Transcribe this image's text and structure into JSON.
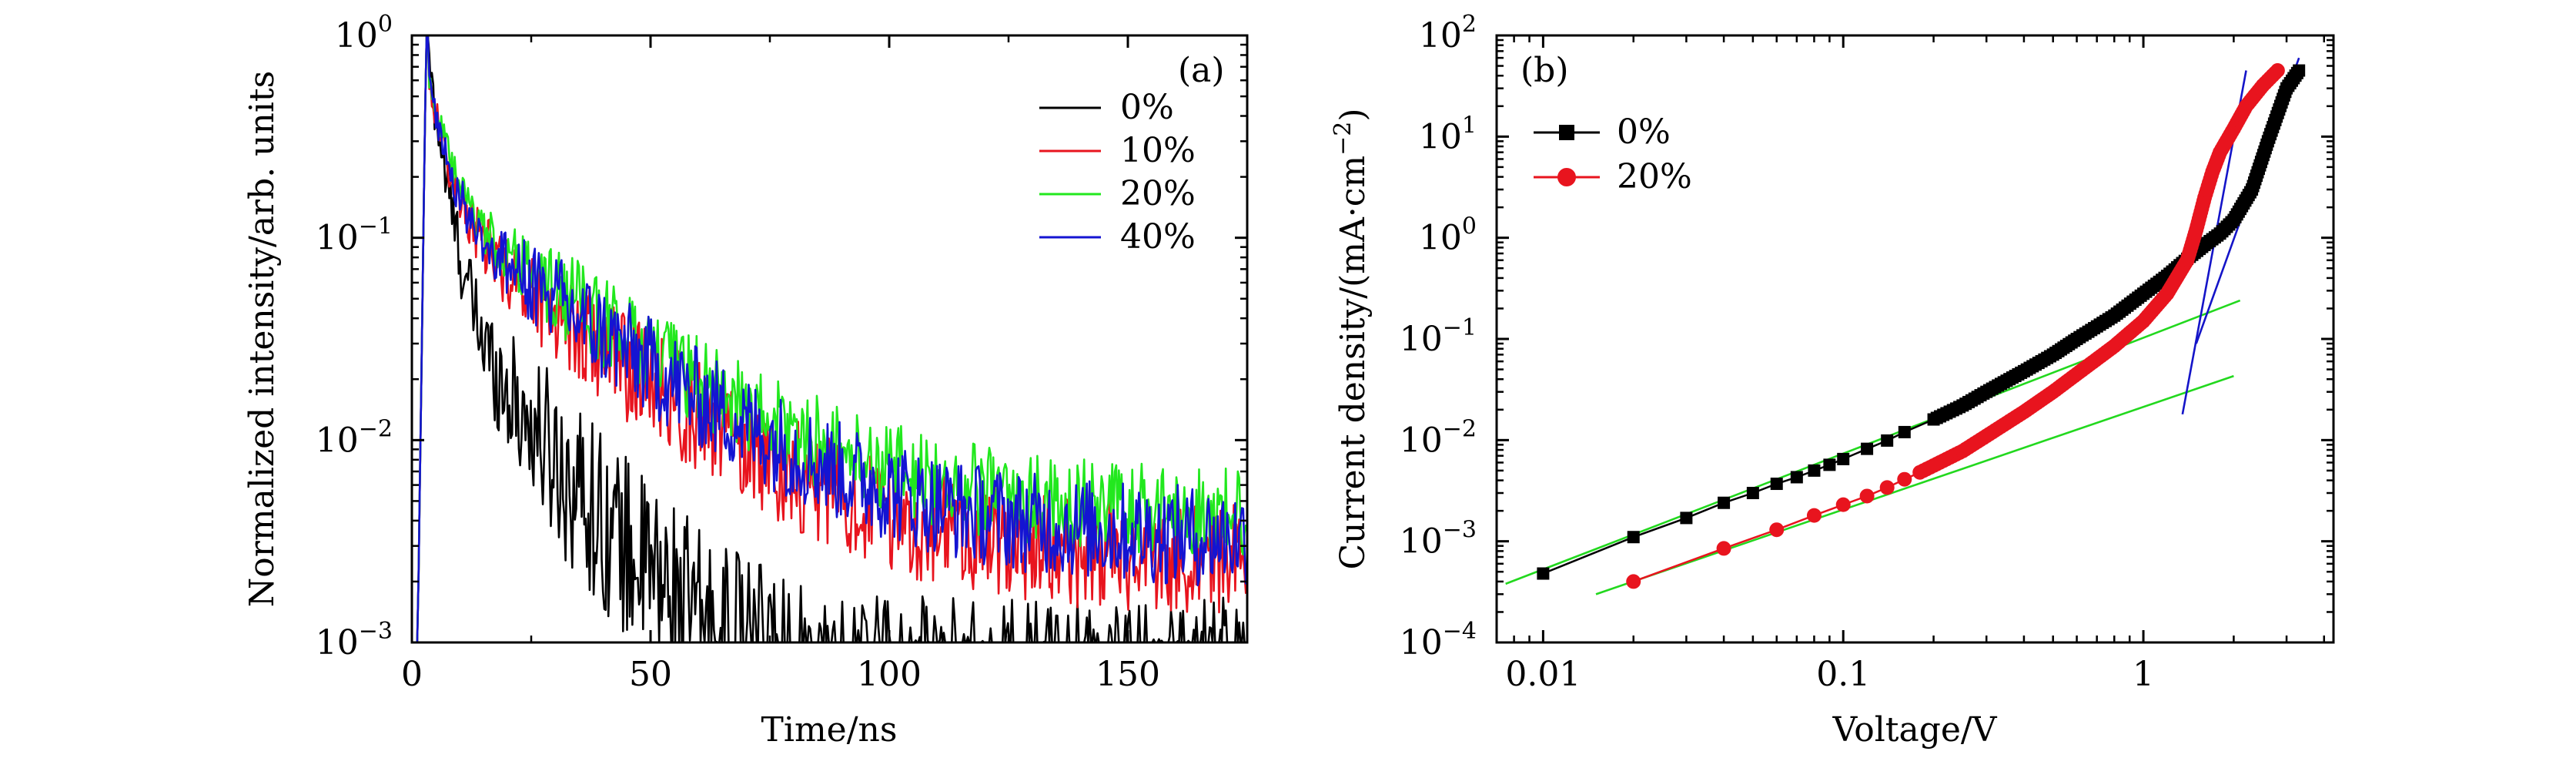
{
  "chart_data": [
    {
      "panel": "(a)",
      "type": "line",
      "xlabel": "Time/ns",
      "ylabel": "Normalized intensity/arb. units",
      "xlim": [
        0,
        175
      ],
      "ylim": [
        0.001,
        1
      ],
      "yscale": "log",
      "xticks": [
        0,
        50,
        100,
        150
      ],
      "xtick_labels": [
        "0",
        "50",
        "100",
        "150"
      ],
      "yticks": [
        0.001,
        0.01,
        0.1,
        1
      ],
      "ytick_labels": [
        {
          "base": "10",
          "exp": "−3"
        },
        {
          "base": "10",
          "exp": "−2"
        },
        {
          "base": "10",
          "exp": "−1"
        },
        {
          "base": "10",
          "exp": "0"
        }
      ],
      "legend_position": "top-right",
      "peak_time": 3,
      "series": [
        {
          "name": "0%",
          "color": "#000000",
          "fast": {
            "a": 0.8,
            "tau": 2.5
          },
          "slow": {
            "a": 0.06,
            "tau": 13
          },
          "floor": 0.0006,
          "noise": 0.9
        },
        {
          "name": "10%",
          "color": "#e8141e",
          "fast": {
            "a": 0.55,
            "tau": 3
          },
          "slow": {
            "a": 0.14,
            "tau": 22
          },
          "floor": 0.0025,
          "noise": 0.55
        },
        {
          "name": "20%",
          "color": "#22e81e",
          "fast": {
            "a": 0.55,
            "tau": 3.2
          },
          "slow": {
            "a": 0.15,
            "tau": 25
          },
          "floor": 0.0042,
          "noise": 0.45
        },
        {
          "name": "40%",
          "color": "#1414d2",
          "fast": {
            "a": 0.55,
            "tau": 3
          },
          "slow": {
            "a": 0.14,
            "tau": 24
          },
          "floor": 0.0032,
          "noise": 0.5
        }
      ]
    },
    {
      "panel": "(b)",
      "type": "scatter",
      "xlabel": "Voltage/V",
      "ylabel": "Current density/(mA·cm",
      "ylabel_exp": "−2",
      "ylabel_tail": ")",
      "xlim": [
        0.007,
        4.3
      ],
      "ylim": [
        0.0001,
        100
      ],
      "xscale": "log",
      "yscale": "log",
      "xticks": [
        0.01,
        0.1,
        1
      ],
      "xtick_labels": [
        "0.01",
        "0.1",
        "1"
      ],
      "yticks": [
        0.0001,
        0.001,
        0.01,
        0.1,
        1,
        10,
        100
      ],
      "ytick_labels": [
        {
          "base": "10",
          "exp": "−4"
        },
        {
          "base": "10",
          "exp": "−3"
        },
        {
          "base": "10",
          "exp": "−2"
        },
        {
          "base": "10",
          "exp": "−1"
        },
        {
          "base": "10",
          "exp": "0"
        },
        {
          "base": "10",
          "exp": "1"
        },
        {
          "base": "10",
          "exp": "2"
        }
      ],
      "legend_position": "top-left",
      "series": [
        {
          "name": "0%",
          "color": "#000000",
          "marker": "square",
          "x": [
            0.01,
            0.02,
            0.03,
            0.04,
            0.05,
            0.06,
            0.07,
            0.08,
            0.09,
            0.1,
            0.12,
            0.14,
            0.16,
            0.2,
            0.25,
            0.3,
            0.4,
            0.5,
            0.6,
            0.8,
            1.0,
            1.2,
            1.4,
            1.6,
            1.8,
            2.0,
            2.3,
            2.6,
            3.0,
            3.3
          ],
          "y": [
            0.00048,
            0.0011,
            0.0017,
            0.0024,
            0.003,
            0.0037,
            0.0043,
            0.005,
            0.0057,
            0.0065,
            0.0082,
            0.0099,
            0.012,
            0.016,
            0.022,
            0.03,
            0.048,
            0.07,
            0.1,
            0.17,
            0.28,
            0.42,
            0.62,
            0.85,
            1.1,
            1.5,
            3.0,
            9.0,
            30,
            45
          ]
        },
        {
          "name": "20%",
          "color": "#e8141e",
          "marker": "circle",
          "x": [
            0.02,
            0.04,
            0.06,
            0.08,
            0.1,
            0.12,
            0.14,
            0.16,
            0.18,
            0.2,
            0.25,
            0.3,
            0.4,
            0.5,
            0.6,
            0.8,
            1.0,
            1.2,
            1.4,
            1.5,
            1.6,
            1.7,
            1.8,
            2.0,
            2.2,
            2.5,
            2.8
          ],
          "y": [
            0.0004,
            0.00085,
            0.0013,
            0.0018,
            0.0023,
            0.0028,
            0.0034,
            0.0041,
            0.0048,
            0.0056,
            0.0078,
            0.011,
            0.019,
            0.03,
            0.045,
            0.085,
            0.15,
            0.28,
            0.6,
            1.2,
            2.5,
            4.5,
            7.0,
            12,
            20,
            32,
            45
          ]
        }
      ],
      "fit_lines": [
        {
          "color": "#22d81e",
          "x": [
            0.0075,
            2.1
          ],
          "y": [
            0.00038,
            0.24
          ]
        },
        {
          "color": "#22d81e",
          "x": [
            0.015,
            2.0
          ],
          "y": [
            0.0003,
            0.043
          ]
        },
        {
          "color": "#1414c8",
          "x": [
            1.35,
            2.2
          ],
          "y": [
            0.018,
            45
          ]
        },
        {
          "color": "#1414c8",
          "x": [
            1.5,
            3.3
          ],
          "y": [
            0.09,
            60
          ]
        }
      ]
    }
  ]
}
